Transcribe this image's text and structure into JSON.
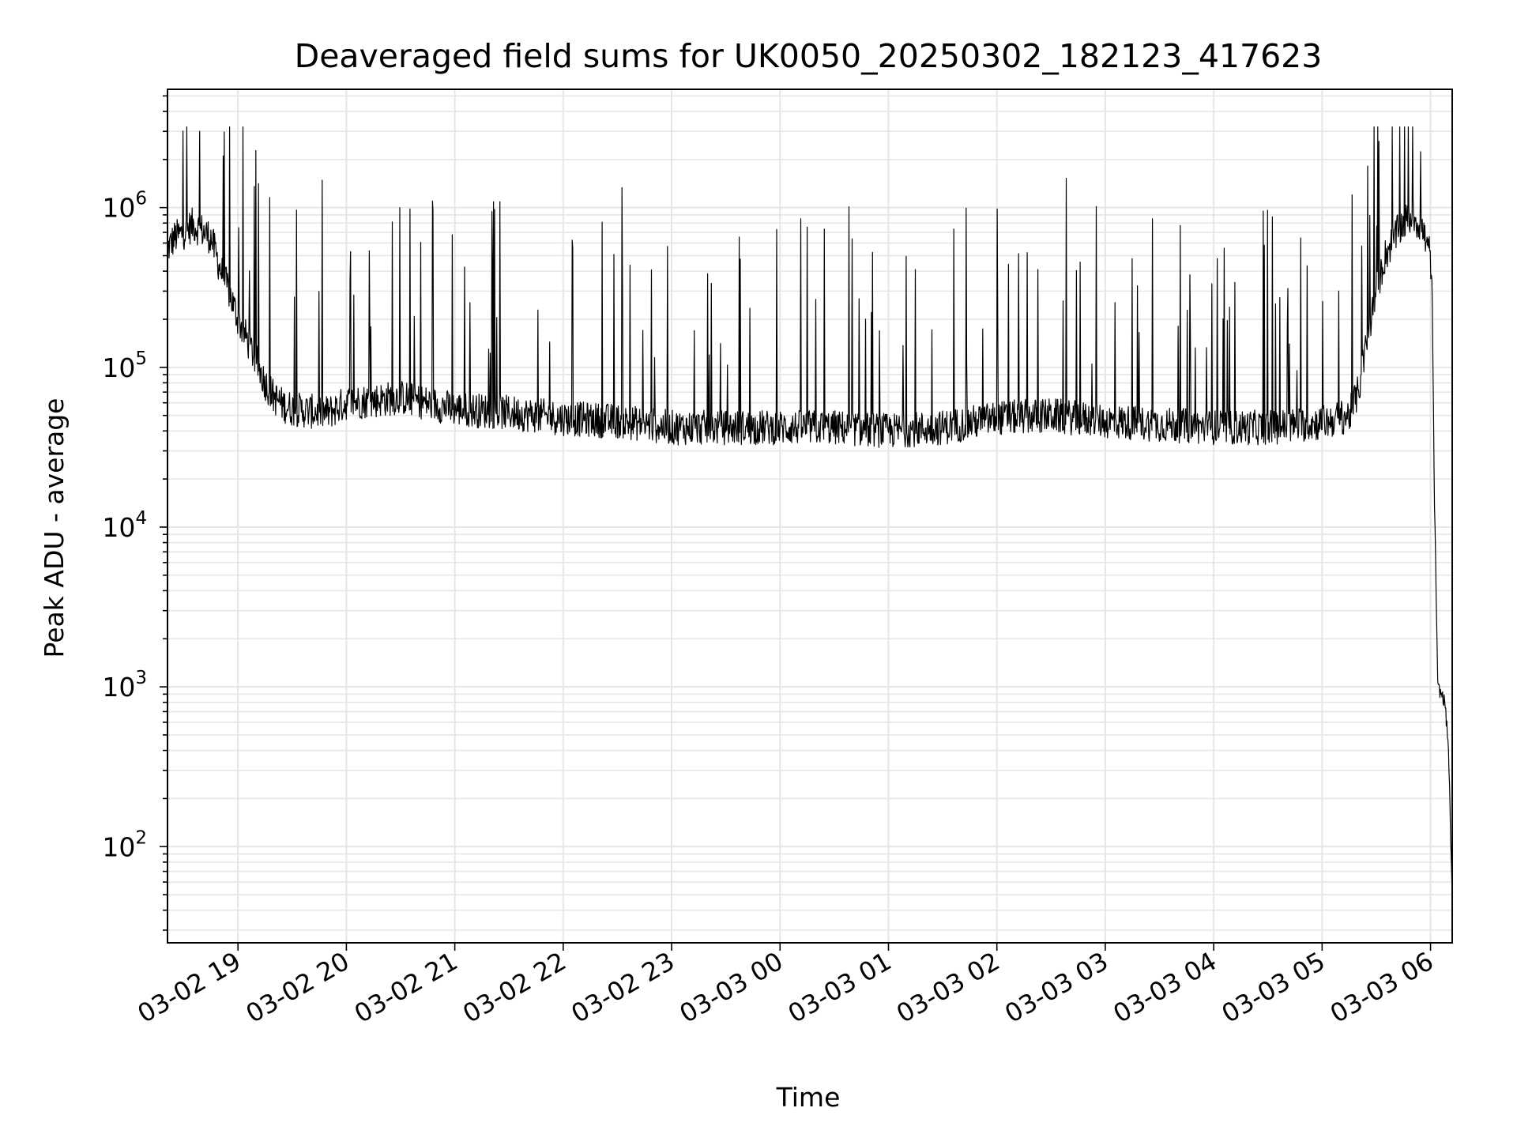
{
  "chart_data": {
    "type": "line",
    "title": "Deaveraged field sums for UK0050_20250302_182123_417623",
    "xlabel": "Time",
    "ylabel": "Peak ADU - average",
    "y_scale": "log",
    "ylim": [
      25,
      5500000
    ],
    "xlim": [
      "2025-03-02 18:21",
      "2025-03-03 06:12"
    ],
    "x_ticks": [
      "03-02 19",
      "03-02 20",
      "03-02 21",
      "03-02 22",
      "03-02 23",
      "03-03 00",
      "03-03 01",
      "03-03 02",
      "03-03 03",
      "03-03 04",
      "03-03 05",
      "03-03 06"
    ],
    "y_ticks": [
      {
        "value": 100,
        "base": "10",
        "exp": "2"
      },
      {
        "value": 1000,
        "base": "10",
        "exp": "3"
      },
      {
        "value": 10000,
        "base": "10",
        "exp": "4"
      },
      {
        "value": 100000,
        "base": "10",
        "exp": "5"
      },
      {
        "value": 1000000,
        "base": "10",
        "exp": "6"
      }
    ],
    "grid": true,
    "line_color": "#000000",
    "grid_color": "#e6e6e6",
    "series": [
      {
        "x": [
          "2025-03-02 18:21",
          "2025-03-02 18:25",
          "2025-03-02 18:30",
          "2025-03-02 18:35",
          "2025-03-02 18:40",
          "2025-03-02 18:45",
          "2025-03-02 18:50",
          "2025-03-02 18:55",
          "2025-03-02 19:00",
          "2025-03-02 19:05",
          "2025-03-02 19:10",
          "2025-03-02 19:15",
          "2025-03-02 19:20",
          "2025-03-02 19:25",
          "2025-03-02 19:30",
          "2025-03-02 19:40",
          "2025-03-02 19:50",
          "2025-03-02 20:00",
          "2025-03-02 20:15",
          "2025-03-02 20:30",
          "2025-03-02 21:00",
          "2025-03-02 21:30",
          "2025-03-02 22:00",
          "2025-03-02 22:30",
          "2025-03-02 23:00",
          "2025-03-02 23:30",
          "2025-03-03 00:00",
          "2025-03-03 00:30",
          "2025-03-03 01:00",
          "2025-03-03 01:30",
          "2025-03-03 02:00",
          "2025-03-03 02:30",
          "2025-03-03 03:00",
          "2025-03-03 03:30",
          "2025-03-03 04:00",
          "2025-03-03 04:30",
          "2025-03-03 05:00",
          "2025-03-03 05:15",
          "2025-03-03 05:20",
          "2025-03-03 05:25",
          "2025-03-03 05:30",
          "2025-03-03 05:35",
          "2025-03-03 05:40",
          "2025-03-03 05:45",
          "2025-03-03 05:50",
          "2025-03-03 05:55",
          "2025-03-03 06:00",
          "2025-03-03 06:01",
          "2025-03-03 06:02",
          "2025-03-03 06:04",
          "2025-03-03 06:06",
          "2025-03-03 06:08",
          "2025-03-03 06:10",
          "2025-03-03 06:12"
        ],
        "y": [
          550000,
          650000,
          700000,
          780000,
          720000,
          650000,
          420000,
          300000,
          200000,
          150000,
          110000,
          80000,
          65000,
          58000,
          55000,
          53000,
          52000,
          60000,
          62000,
          65000,
          55000,
          52000,
          48000,
          46000,
          42000,
          42000,
          42000,
          42000,
          40000,
          42000,
          48000,
          50000,
          46000,
          44000,
          42000,
          42000,
          45000,
          50000,
          70000,
          150000,
          300000,
          500000,
          650000,
          800000,
          900000,
          750000,
          500000,
          250000,
          20000,
          1000,
          900,
          800,
          400,
          45
        ]
      }
    ]
  }
}
